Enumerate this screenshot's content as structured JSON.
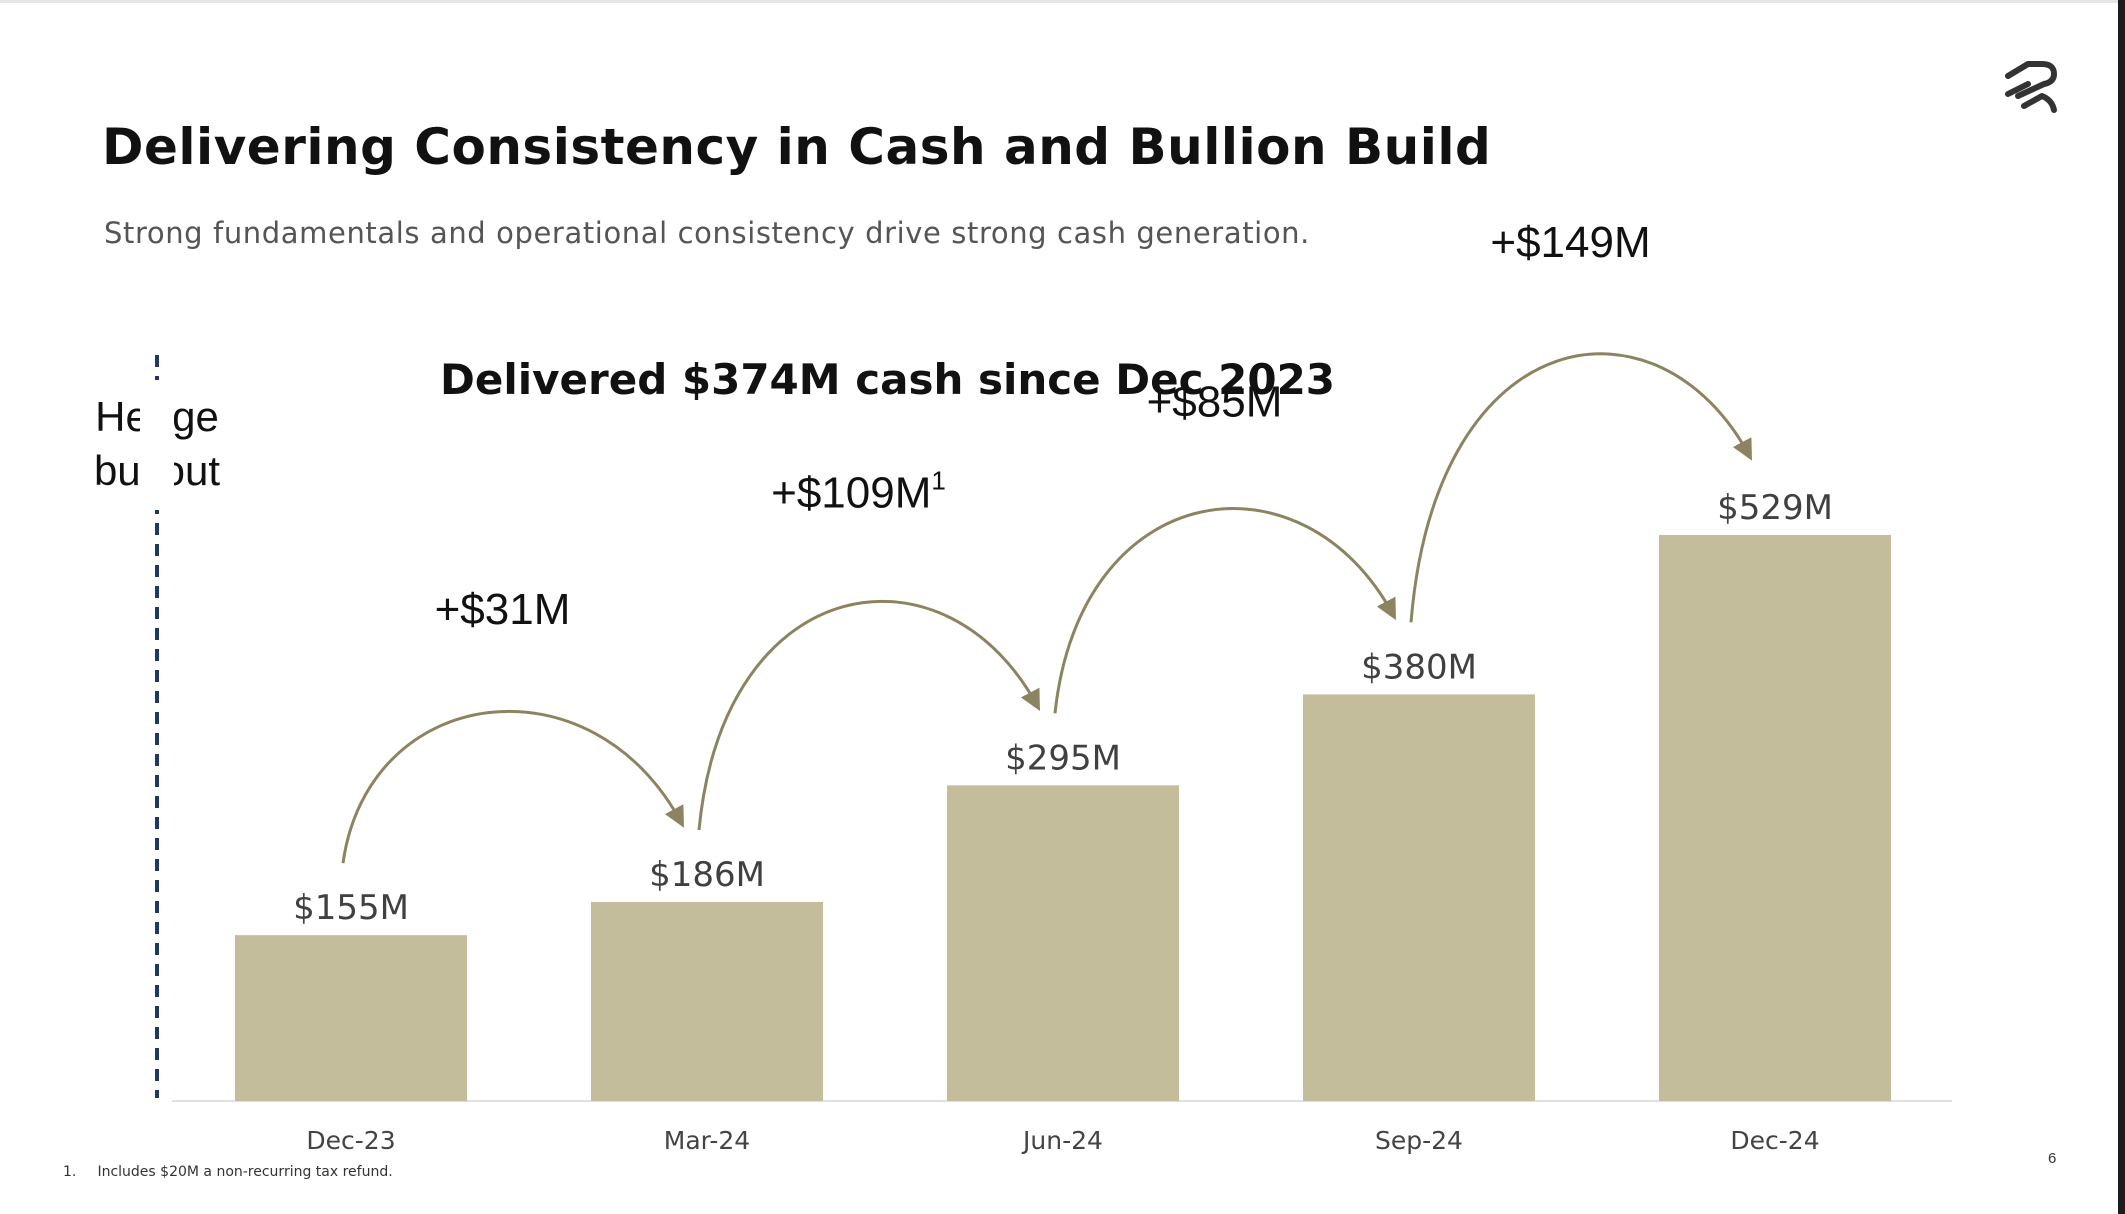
{
  "slide": {
    "title": "Delivering Consistency in Cash and Bullion Build",
    "subtitle": "Strong fundamentals and operational consistency drive strong cash generation.",
    "headline": "Delivered $374M cash since Dec 2023",
    "hedge_label_line1": "Hedge",
    "hedge_label_line2": "buyout",
    "footnote_number": "1.",
    "footnote_text": "Includes $20M a non-recurring tax refund.",
    "page_number": "6",
    "logo_icon": "company-logo-icon"
  },
  "colors": {
    "bar": "#c4bd9b",
    "arrow": "#8c8461",
    "divider": "#1f3864"
  },
  "chart_data": {
    "type": "bar",
    "categories": [
      "Dec-23",
      "Mar-24",
      "Jun-24",
      "Sep-24",
      "Dec-24"
    ],
    "values": [
      155,
      186,
      295,
      380,
      529
    ],
    "value_labels": [
      "$155M",
      "$186M",
      "$295M",
      "$380M",
      "$529M"
    ],
    "ylim": [
      0,
      600
    ],
    "grid": false,
    "annotations": [
      {
        "from": "Dec-23",
        "to": "Mar-24",
        "text": "+$31M",
        "superscript": ""
      },
      {
        "from": "Mar-24",
        "to": "Jun-24",
        "text": "+$109M",
        "superscript": "1"
      },
      {
        "from": "Jun-24",
        "to": "Sep-24",
        "text": "+$85M",
        "superscript": ""
      },
      {
        "from": "Sep-24",
        "to": "Dec-24",
        "text": "+$149M",
        "superscript": ""
      }
    ]
  }
}
